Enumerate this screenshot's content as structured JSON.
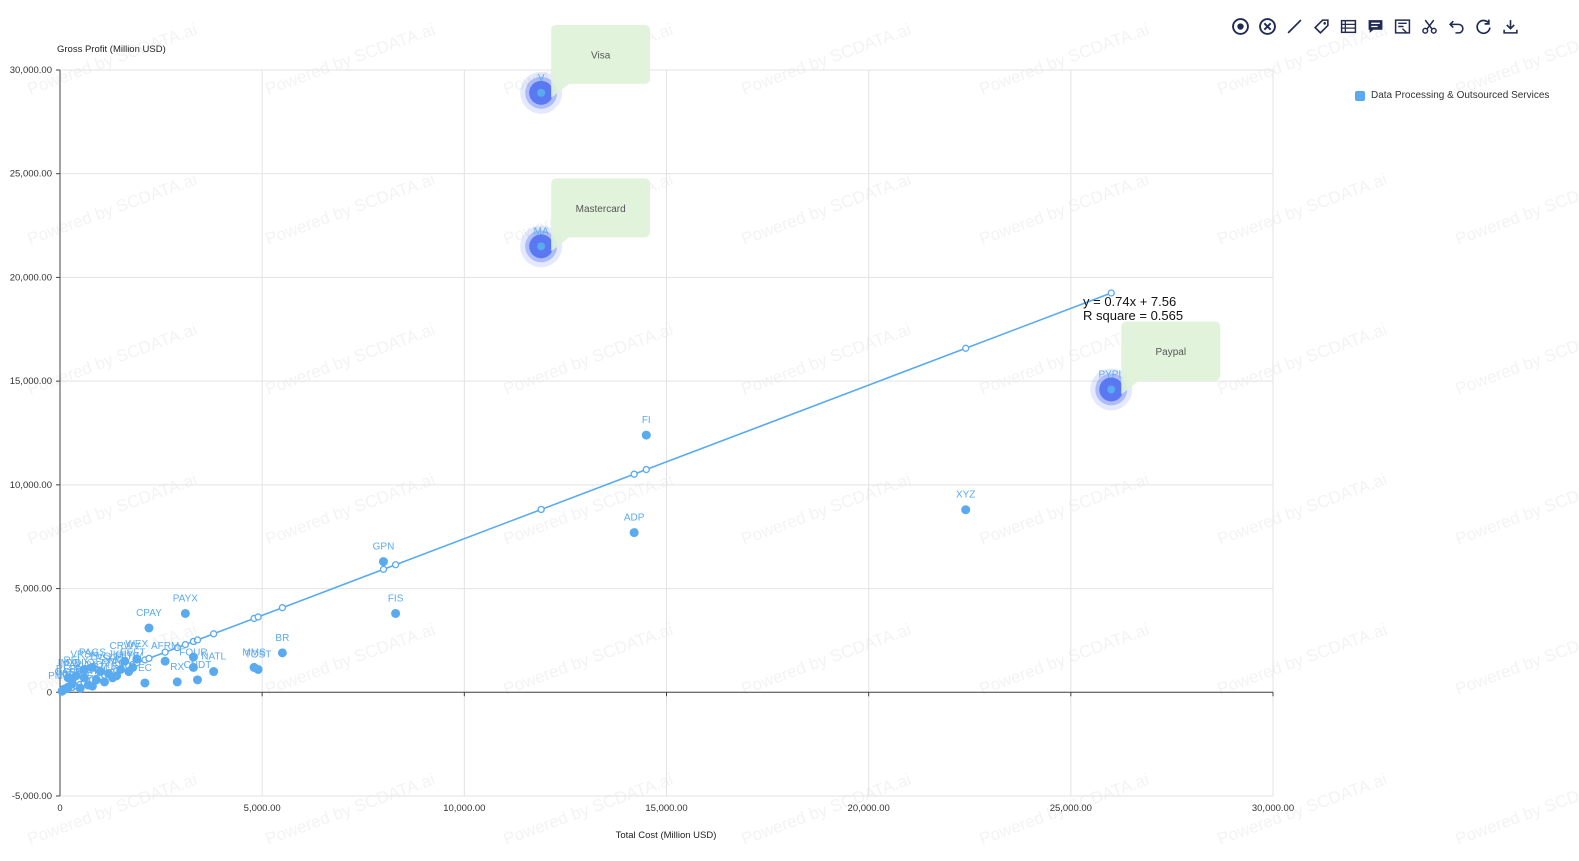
{
  "toolbar": {
    "icons": [
      "target-icon",
      "close-circle-icon",
      "line-icon",
      "tag-icon",
      "table-icon",
      "comment-icon",
      "image-text-icon",
      "scissors-icon",
      "undo-icon",
      "refresh-icon",
      "download-icon"
    ]
  },
  "legend": {
    "label": "Data Processing & Outsourced Services",
    "color": "#5aaaf0"
  },
  "watermark_text": "Powered by SCDATA.ai",
  "chart_data": {
    "type": "scatter",
    "xlabel": "Total Cost (Million USD)",
    "ylabel": "Gross Profit (Million USD)",
    "xlim": [
      0,
      30000
    ],
    "ylim": [
      -5000,
      30000
    ],
    "x_ticks": [
      0,
      5000,
      10000,
      15000,
      20000,
      25000,
      30000
    ],
    "x_tick_labels": [
      "0",
      "5,000.00",
      "10,000.00",
      "15,000.00",
      "20,000.00",
      "25,000.00",
      "30,000.00"
    ],
    "y_ticks": [
      -5000,
      0,
      5000,
      10000,
      15000,
      20000,
      25000,
      30000
    ],
    "y_tick_labels": [
      "-5,000.00",
      "0",
      "5,000.00",
      "10,000.00",
      "15,000.00",
      "20,000.00",
      "25,000.00",
      "30,000.00"
    ],
    "grid": true,
    "legend_position": "top-right",
    "series_color": "#5aaaf0",
    "highlight_color": "#4a6cf0",
    "callout_color": "#dff2d8",
    "points": [
      {
        "label": "V",
        "x": 11900,
        "y": 28900,
        "highlight": true,
        "callout": "Visa"
      },
      {
        "label": "MA",
        "x": 11900,
        "y": 21500,
        "highlight": true,
        "callout": "Mastercard"
      },
      {
        "label": "PYPL",
        "x": 26000,
        "y": 14600,
        "highlight": true,
        "callout": "Paypal"
      },
      {
        "label": "FI",
        "x": 14500,
        "y": 12400
      },
      {
        "label": "XYZ",
        "x": 22400,
        "y": 8800
      },
      {
        "label": "ADP",
        "x": 14200,
        "y": 7700
      },
      {
        "label": "GPN",
        "x": 8000,
        "y": 6300
      },
      {
        "label": "FIS",
        "x": 8300,
        "y": 3800
      },
      {
        "label": "PAYX",
        "x": 3100,
        "y": 3800
      },
      {
        "label": "CPAY",
        "x": 2200,
        "y": 3100
      },
      {
        "label": "BR",
        "x": 5500,
        "y": 1900
      },
      {
        "label": "WEX",
        "x": 1900,
        "y": 1600
      },
      {
        "label": "CRWV",
        "x": 1600,
        "y": 1500
      },
      {
        "label": "AFRM",
        "x": 2600,
        "y": 1500
      },
      {
        "label": "FOUR",
        "x": 3300,
        "y": 1200
      },
      {
        "label": "NATL",
        "x": 3800,
        "y": 1000
      },
      {
        "label": "MMS",
        "x": 4800,
        "y": 1200
      },
      {
        "label": "G",
        "x": 3300,
        "y": 1700
      },
      {
        "label": "TOST",
        "x": 4900,
        "y": 1100
      },
      {
        "label": "RX",
        "x": 2900,
        "y": 500
      },
      {
        "label": "CNDT",
        "x": 3400,
        "y": 600
      },
      {
        "label": "EC",
        "x": 2100,
        "y": 450
      },
      {
        "label": "JKHY",
        "x": 1500,
        "y": 1100
      },
      {
        "label": "VRSN",
        "x": 600,
        "y": 1100
      },
      {
        "label": "PAGS",
        "x": 800,
        "y": 1200
      },
      {
        "label": "EVO",
        "x": 1000,
        "y": 1000
      },
      {
        "label": "PSFE",
        "x": 1200,
        "y": 900
      },
      {
        "label": "RELY",
        "x": 400,
        "y": 800
      },
      {
        "label": "TTEC",
        "x": 1300,
        "y": 700
      },
      {
        "label": "AVDX",
        "x": 900,
        "y": 600
      },
      {
        "label": "REPAY",
        "x": 300,
        "y": 400
      },
      {
        "label": "PAYO",
        "x": 700,
        "y": 350
      },
      {
        "label": "CASS",
        "x": 200,
        "y": 250
      },
      {
        "label": "IIIV",
        "x": 100,
        "y": 150
      },
      {
        "label": "PMTS",
        "x": 50,
        "y": 50
      },
      {
        "label": "TREE",
        "x": 500,
        "y": 200
      },
      {
        "label": "PRTH",
        "x": 800,
        "y": 300
      },
      {
        "label": "CTLP",
        "x": 1100,
        "y": 500
      },
      {
        "label": "MQ",
        "x": 1400,
        "y": 800
      },
      {
        "label": "FLYW",
        "x": 1700,
        "y": 1000
      },
      {
        "label": "DLO",
        "x": 600,
        "y": 700
      },
      {
        "label": "PAY",
        "x": 300,
        "y": 600
      },
      {
        "label": "IMXI",
        "x": 200,
        "y": 700
      },
      {
        "label": "EEFT",
        "x": 1800,
        "y": 1200
      }
    ],
    "trendline": {
      "slope": 0.74,
      "intercept": 7.56,
      "r_squared": 0.565,
      "equation_text": "y = 0.74x + 7.56",
      "r_squared_text": "R square = 0.565"
    }
  }
}
